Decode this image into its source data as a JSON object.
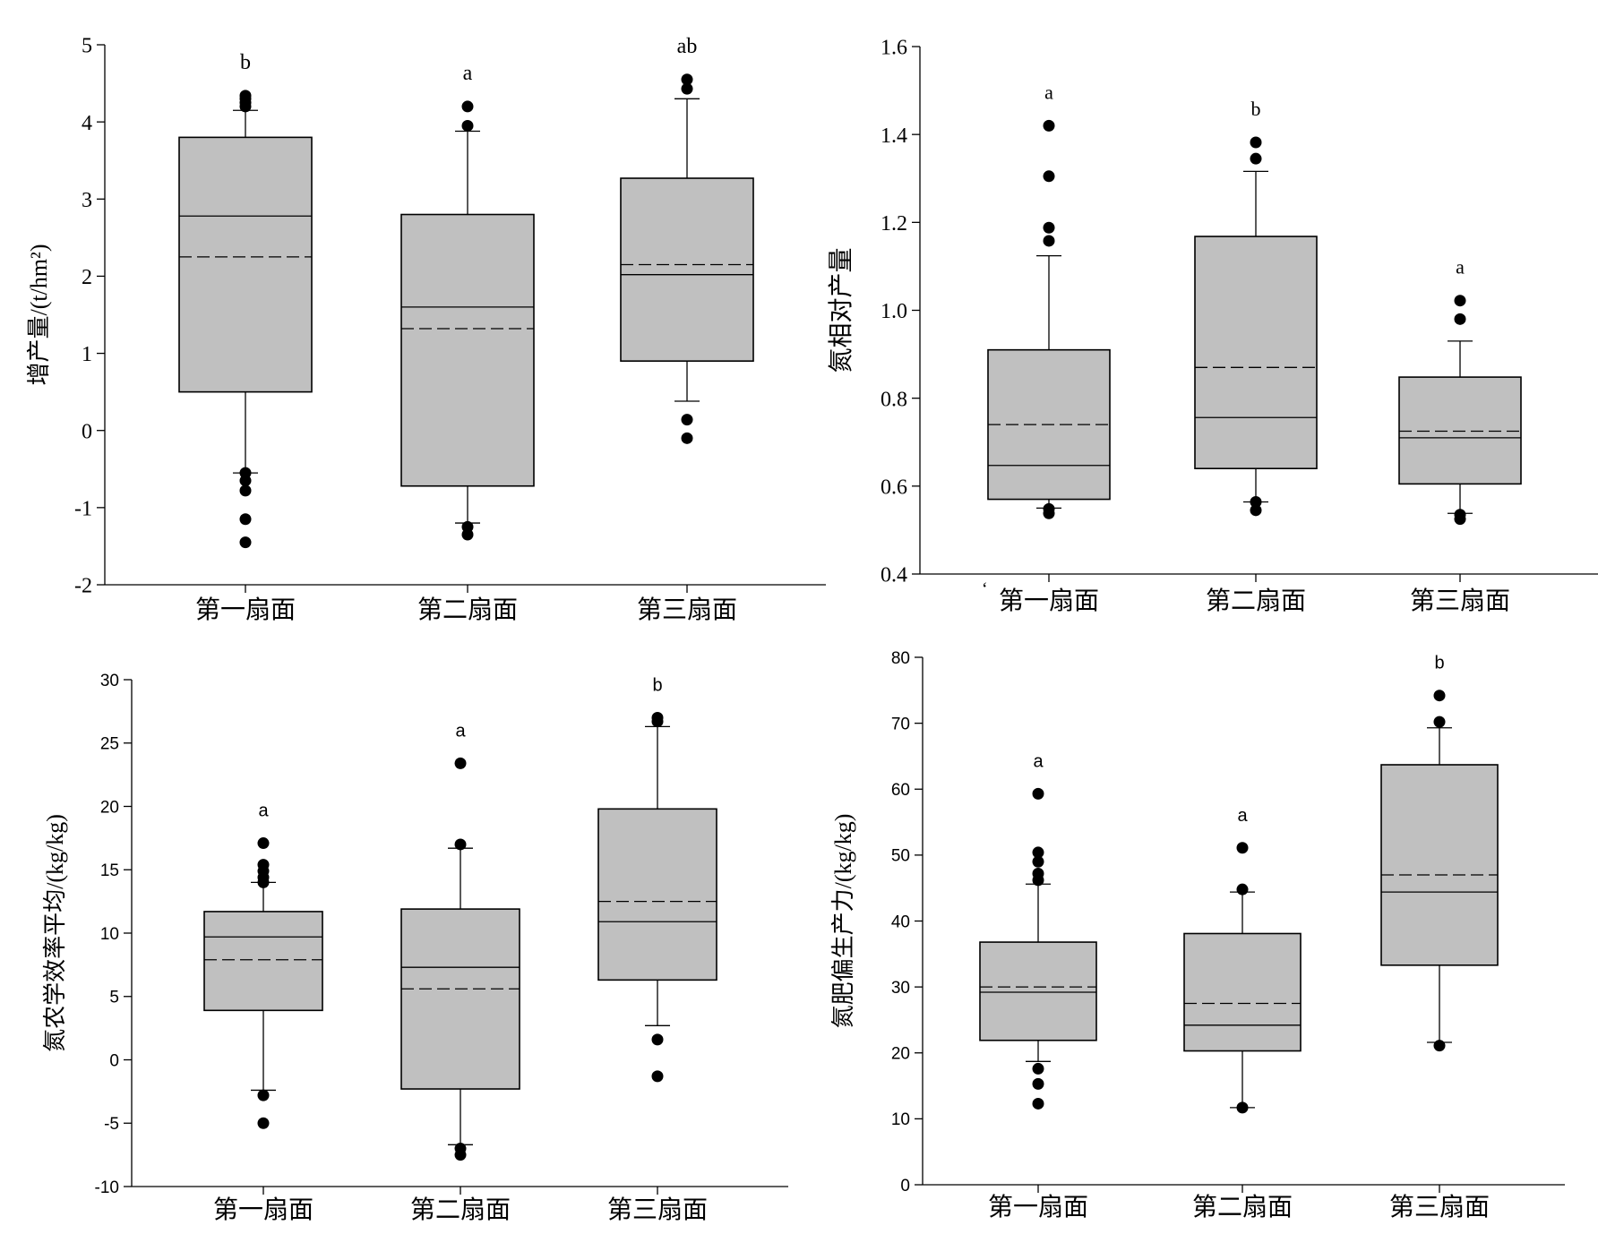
{
  "chart_data": [
    {
      "type": "box",
      "ylabel": "增产量/(t/hm²)",
      "ylim": [
        -2,
        5
      ],
      "yticks": [
        -2,
        -1,
        0,
        1,
        2,
        3,
        4,
        5
      ],
      "categories": [
        "第一扇面",
        "第二扇面",
        "第三扇面"
      ],
      "letters": [
        "b",
        "a",
        "ab"
      ],
      "boxes": [
        {
          "q1": 0.5,
          "median": 2.78,
          "q3": 3.8,
          "mean": 2.25,
          "whisker_low": -0.55,
          "whisker_high": 4.15,
          "outliers": [
            4.34,
            4.3,
            4.25,
            4.2,
            -0.55,
            -0.65,
            -0.78,
            -1.15,
            -1.45
          ]
        },
        {
          "q1": -0.72,
          "median": 1.6,
          "q3": 2.8,
          "mean": 1.32,
          "whisker_low": -1.2,
          "whisker_high": 3.88,
          "outliers": [
            4.2,
            3.95,
            -1.25,
            -1.35
          ]
        },
        {
          "q1": 0.9,
          "median": 2.02,
          "q3": 3.27,
          "mean": 2.15,
          "whisker_low": 0.38,
          "whisker_high": 4.3,
          "outliers": [
            4.55,
            4.43,
            0.14,
            -0.1
          ]
        }
      ]
    },
    {
      "type": "box",
      "ylabel": "氮相对产量",
      "ylim": [
        0.4,
        1.6
      ],
      "yticks": [
        "0.4",
        "0.6",
        "0.8",
        "1.0",
        "1.2",
        "1.4",
        "1.6"
      ],
      "categories": [
        "第一扇面",
        "第二扇面",
        "第三扇面"
      ],
      "letters": [
        "a",
        "b",
        "a"
      ],
      "boxes": [
        {
          "q1": 0.57,
          "median": 0.647,
          "q3": 0.91,
          "mean": 0.74,
          "whisker_low": 0.55,
          "whisker_high": 1.124,
          "outliers": [
            1.42,
            1.305,
            1.188,
            1.158,
            0.548,
            0.538
          ]
        },
        {
          "q1": 0.64,
          "median": 0.756,
          "q3": 1.168,
          "mean": 0.87,
          "whisker_low": 0.564,
          "whisker_high": 1.316,
          "outliers": [
            1.382,
            1.345,
            0.564,
            0.545
          ]
        },
        {
          "q1": 0.605,
          "median": 0.71,
          "q3": 0.848,
          "mean": 0.725,
          "whisker_low": 0.538,
          "whisker_high": 0.93,
          "outliers": [
            1.022,
            0.98,
            0.535,
            0.525
          ]
        }
      ]
    },
    {
      "type": "box",
      "ylabel": "氮农学效率平均/(kg/kg)",
      "ylim": [
        -10,
        30
      ],
      "yticks": [
        -10,
        -5,
        0,
        5,
        10,
        15,
        20,
        25,
        30
      ],
      "categories": [
        "第一扇面",
        "第二扇面",
        "第三扇面"
      ],
      "letters": [
        "a",
        "a",
        "b"
      ],
      "boxes": [
        {
          "q1": 3.9,
          "median": 9.7,
          "q3": 11.7,
          "mean": 7.9,
          "whisker_low": -2.4,
          "whisker_high": 14.0,
          "outliers": [
            17.1,
            15.4,
            14.9,
            14.4,
            14.0,
            -2.8,
            -5.0
          ]
        },
        {
          "q1": -2.3,
          "median": 7.3,
          "q3": 11.9,
          "mean": 5.6,
          "whisker_low": -6.7,
          "whisker_high": 16.7,
          "outliers": [
            23.4,
            17.0,
            -7.0,
            -7.5
          ]
        },
        {
          "q1": 6.3,
          "median": 10.9,
          "q3": 19.8,
          "mean": 12.5,
          "whisker_low": 2.7,
          "whisker_high": 26.3,
          "outliers": [
            27.0,
            26.7,
            1.6,
            -1.3
          ]
        }
      ]
    },
    {
      "type": "box",
      "ylabel": "氮肥偏生产力/(kg/kg)",
      "ylim": [
        0,
        80
      ],
      "yticks": [
        0,
        10,
        20,
        30,
        40,
        50,
        60,
        70,
        80
      ],
      "categories": [
        "第一扇面",
        "第二扇面",
        "第三扇面"
      ],
      "letters": [
        "a",
        "a",
        "b"
      ],
      "boxes": [
        {
          "q1": 21.9,
          "median": 29.2,
          "q3": 36.8,
          "mean": 30.0,
          "whisker_low": 18.7,
          "whisker_high": 45.6,
          "outliers": [
            59.3,
            50.4,
            49.0,
            47.2,
            46.2,
            17.6,
            15.3,
            12.3
          ]
        },
        {
          "q1": 20.3,
          "median": 24.2,
          "q3": 38.1,
          "mean": 27.5,
          "whisker_low": 11.7,
          "whisker_high": 44.4,
          "outliers": [
            51.1,
            44.8,
            11.7
          ]
        },
        {
          "q1": 33.3,
          "median": 44.4,
          "q3": 63.7,
          "mean": 47.0,
          "whisker_low": 21.6,
          "whisker_high": 69.3,
          "outliers": [
            74.2,
            70.2,
            21.1
          ]
        }
      ]
    }
  ],
  "annotations": {
    "stray_mark_top_right": "‘"
  }
}
